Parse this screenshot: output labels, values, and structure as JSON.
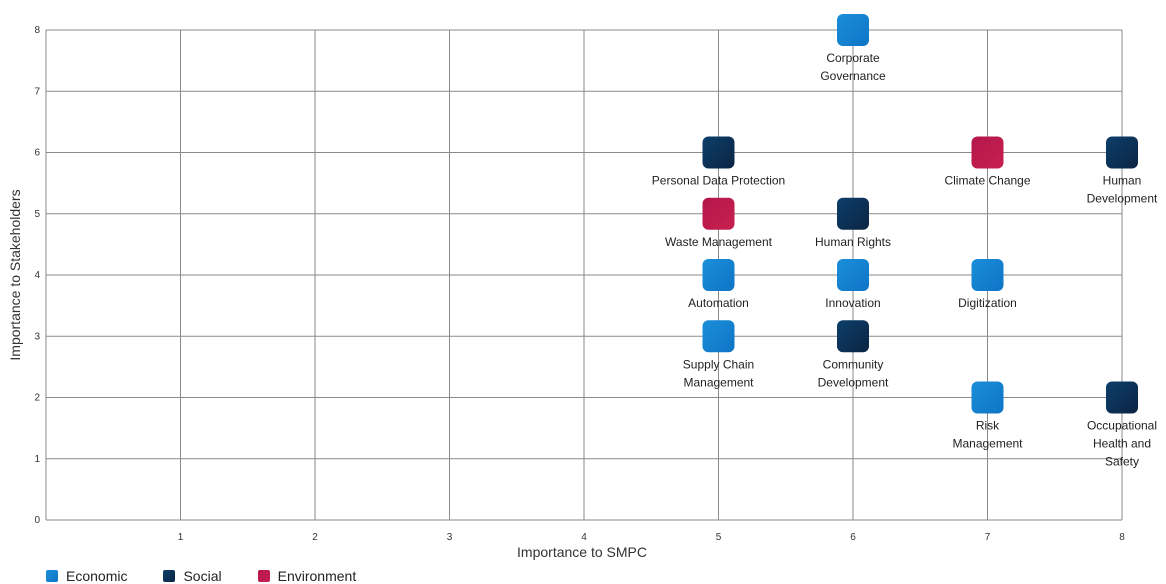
{
  "chart_data": {
    "type": "scatter",
    "title": "",
    "xlabel": "Importance to SMPC",
    "ylabel": "Importance to Stakeholders",
    "xlim": [
      0,
      8
    ],
    "ylim": [
      0,
      8
    ],
    "x_ticks": [
      "1",
      "2",
      "3",
      "4",
      "5",
      "6",
      "7",
      "8"
    ],
    "y_ticks": [
      "0",
      "1",
      "2",
      "3",
      "4",
      "5",
      "6",
      "7",
      "8"
    ],
    "grid": true,
    "legend_position": "bottom-left",
    "categories": [
      {
        "name": "Economic",
        "color": "#1a8fd9",
        "color2": "#0f74c6"
      },
      {
        "name": "Social",
        "color": "#0d3f6b",
        "color2": "#0b2442"
      },
      {
        "name": "Environment",
        "color": "#b4174a",
        "color2": "#c72050"
      }
    ],
    "points": [
      {
        "label": "Corporate\nGovernance",
        "x": 6,
        "y": 8,
        "category": "Economic"
      },
      {
        "label": "Personal Data Protection",
        "x": 5,
        "y": 6,
        "category": "Social"
      },
      {
        "label": "Climate Change",
        "x": 7,
        "y": 6,
        "category": "Environment"
      },
      {
        "label": "Human\nDevelopment",
        "x": 8,
        "y": 6,
        "category": "Social"
      },
      {
        "label": "Waste Management",
        "x": 5,
        "y": 5,
        "category": "Environment"
      },
      {
        "label": "Human Rights",
        "x": 6,
        "y": 5,
        "category": "Social"
      },
      {
        "label": "Automation",
        "x": 5,
        "y": 4,
        "category": "Economic"
      },
      {
        "label": "Innovation",
        "x": 6,
        "y": 4,
        "category": "Economic"
      },
      {
        "label": "Digitization",
        "x": 7,
        "y": 4,
        "category": "Economic"
      },
      {
        "label": "Supply Chain\nManagement",
        "x": 5,
        "y": 3,
        "category": "Economic"
      },
      {
        "label": "Community\nDevelopment",
        "x": 6,
        "y": 3,
        "category": "Social"
      },
      {
        "label": "Risk\nManagement",
        "x": 7,
        "y": 2,
        "category": "Economic"
      },
      {
        "label": "Occupational\nHealth and\nSafety",
        "x": 8,
        "y": 2,
        "category": "Social"
      }
    ]
  }
}
